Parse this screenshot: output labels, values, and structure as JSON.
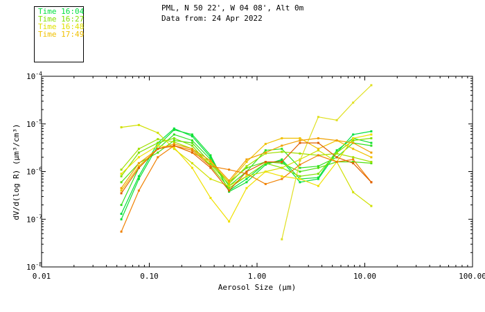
{
  "header": {
    "line1": "PML, N 50 22', W 04 08', Alt 0m",
    "line2": "Data from: 24 Apr 2022"
  },
  "legend": [
    {
      "label": "Time 16:04",
      "color": "#00e040"
    },
    {
      "label": "Time 16:27",
      "color": "#80e000"
    },
    {
      "label": "Time 16:48",
      "color": "#e0e000"
    },
    {
      "label": "Time 17:49",
      "color": "#f0c000"
    }
  ],
  "chart_data": {
    "type": "line",
    "xlabel": "Aerosol Size (μm)",
    "ylabel": "dV/d(log R) (μm³/cm³)",
    "xscale": "log",
    "yscale": "log",
    "xlim": [
      0.01,
      100
    ],
    "ylim": [
      1e-08,
      0.0001
    ],
    "x_ticks": [
      {
        "v": 0.01,
        "label": "0.01"
      },
      {
        "v": 0.1,
        "label": "0.10"
      },
      {
        "v": 1,
        "label": "1.00"
      },
      {
        "v": 10,
        "label": "10.00"
      },
      {
        "v": 100,
        "label": "100.00"
      }
    ],
    "y_ticks": [
      {
        "v": 0.0001,
        "base": "10",
        "exp": "-4"
      },
      {
        "v": 1e-05,
        "base": "10",
        "exp": "-5"
      },
      {
        "v": 1e-06,
        "base": "10",
        "exp": "-6"
      },
      {
        "v": 1e-07,
        "base": "10",
        "exp": "-7"
      },
      {
        "v": 1e-08,
        "base": "10",
        "exp": "-8"
      }
    ],
    "x": [
      0.055,
      0.08,
      0.12,
      0.17,
      0.25,
      0.37,
      0.55,
      0.8,
      1.2,
      1.7,
      2.5,
      3.7,
      5.5,
      7.8,
      11.5
    ],
    "series": [
      {
        "color": "#00e040",
        "values": [
          1.3e-07,
          8e-07,
          4e-06,
          8e-06,
          5.5e-06,
          2e-06,
          4e-07,
          7e-07,
          1.5e-06,
          1.7e-06,
          6e-07,
          7e-07,
          2.5e-06,
          6e-06,
          7e-06
        ]
      },
      {
        "color": "#10e030",
        "values": [
          1e-07,
          7e-07,
          3.5e-06,
          7.5e-06,
          6e-06,
          2.2e-06,
          3.8e-07,
          6e-07,
          1.4e-06,
          1.8e-06,
          7e-07,
          7.5e-07,
          2.8e-06,
          5e-06,
          4e-06
        ]
      },
      {
        "color": "#30e020",
        "values": [
          2e-07,
          1.2e-06,
          3e-06,
          6e-06,
          4.5e-06,
          1.8e-06,
          5e-07,
          1e-06,
          2.8e-06,
          3e-06,
          1.2e-06,
          1.3e-06,
          2e-06,
          4e-06,
          3.5e-06
        ]
      },
      {
        "color": "#50e010",
        "values": [
          6e-07,
          1.5e-06,
          2.5e-06,
          4.5e-06,
          4e-06,
          1.5e-06,
          6e-07,
          1.2e-06,
          1.6e-06,
          1.5e-06,
          1e-06,
          1.2e-06,
          1.6e-06,
          1.6e-06,
          1.5e-06
        ]
      },
      {
        "color": "#80e000",
        "values": [
          8e-07,
          2.5e-06,
          4e-06,
          5e-06,
          3.5e-06,
          1.3e-06,
          4.5e-07,
          8e-07,
          1.5e-06,
          1.2e-06,
          8e-07,
          9e-07,
          2.5e-06,
          4.5e-06,
          5e-06
        ]
      },
      {
        "color": "#a0e000",
        "values": [
          1.1e-06,
          3e-06,
          4.8e-06,
          4.2e-06,
          3e-06,
          1.4e-06,
          5.5e-07,
          1.3e-06,
          2.4e-06,
          2.6e-06,
          2.4e-06,
          2.2e-06,
          2.4e-06,
          2e-06,
          1.6e-06
        ]
      },
      {
        "color": "#d0e000",
        "values": [
          8.5e-06,
          9.5e-06,
          6.5e-06,
          3e-06,
          1.5e-06,
          7e-07,
          5e-07,
          8e-07,
          1e-06,
          1.2e-06,
          1.8e-06,
          2.8e-06,
          1.6e-06,
          3.7e-07,
          1.9e-07
        ]
      },
      {
        "color": "#f0e000",
        "values": [
          9e-07,
          2e-06,
          3.5e-06,
          3.2e-06,
          1.2e-06,
          2.8e-07,
          9e-08,
          4.5e-07,
          1e-06,
          8e-07,
          7e-07,
          5e-07,
          1.6e-06,
          5e-06,
          6e-06
        ]
      },
      {
        "color": "#e0e020",
        "values": [
          null,
          null,
          null,
          null,
          null,
          null,
          null,
          null,
          null,
          3.8e-08,
          1.7e-06,
          1.4e-05,
          1.2e-05,
          2.8e-05,
          6.5e-05
        ]
      },
      {
        "color": "#f0c000",
        "values": [
          4e-07,
          1.3e-06,
          3e-06,
          3.5e-06,
          2.5e-06,
          1.6e-06,
          6e-07,
          1.6e-06,
          3.8e-06,
          5e-06,
          5e-06,
          3e-06,
          4.5e-06,
          3e-06,
          2e-06
        ]
      },
      {
        "color": "#f0a000",
        "values": [
          4.5e-07,
          1.5e-06,
          3e-06,
          3.8e-06,
          3e-06,
          1.7e-06,
          6.5e-07,
          1.8e-06,
          2.5e-06,
          3.5e-06,
          4.5e-06,
          5e-06,
          4.5e-06,
          4e-06,
          2.5e-06
        ]
      },
      {
        "color": "#f08000",
        "values": [
          5.5e-08,
          4e-07,
          2e-06,
          3.5e-06,
          2.8e-06,
          1.3e-06,
          1.1e-06,
          9e-07,
          5.5e-07,
          7e-07,
          1.4e-06,
          2.2e-06,
          1.6e-06,
          1.8e-06,
          6e-07
        ]
      },
      {
        "color": "#e06000",
        "values": [
          3.5e-07,
          1.2e-06,
          3e-06,
          3.5e-06,
          2.5e-06,
          1.2e-06,
          4e-07,
          1e-06,
          1.6e-06,
          1.6e-06,
          4e-06,
          4e-06,
          2e-06,
          1.5e-06,
          6e-07
        ]
      }
    ]
  }
}
